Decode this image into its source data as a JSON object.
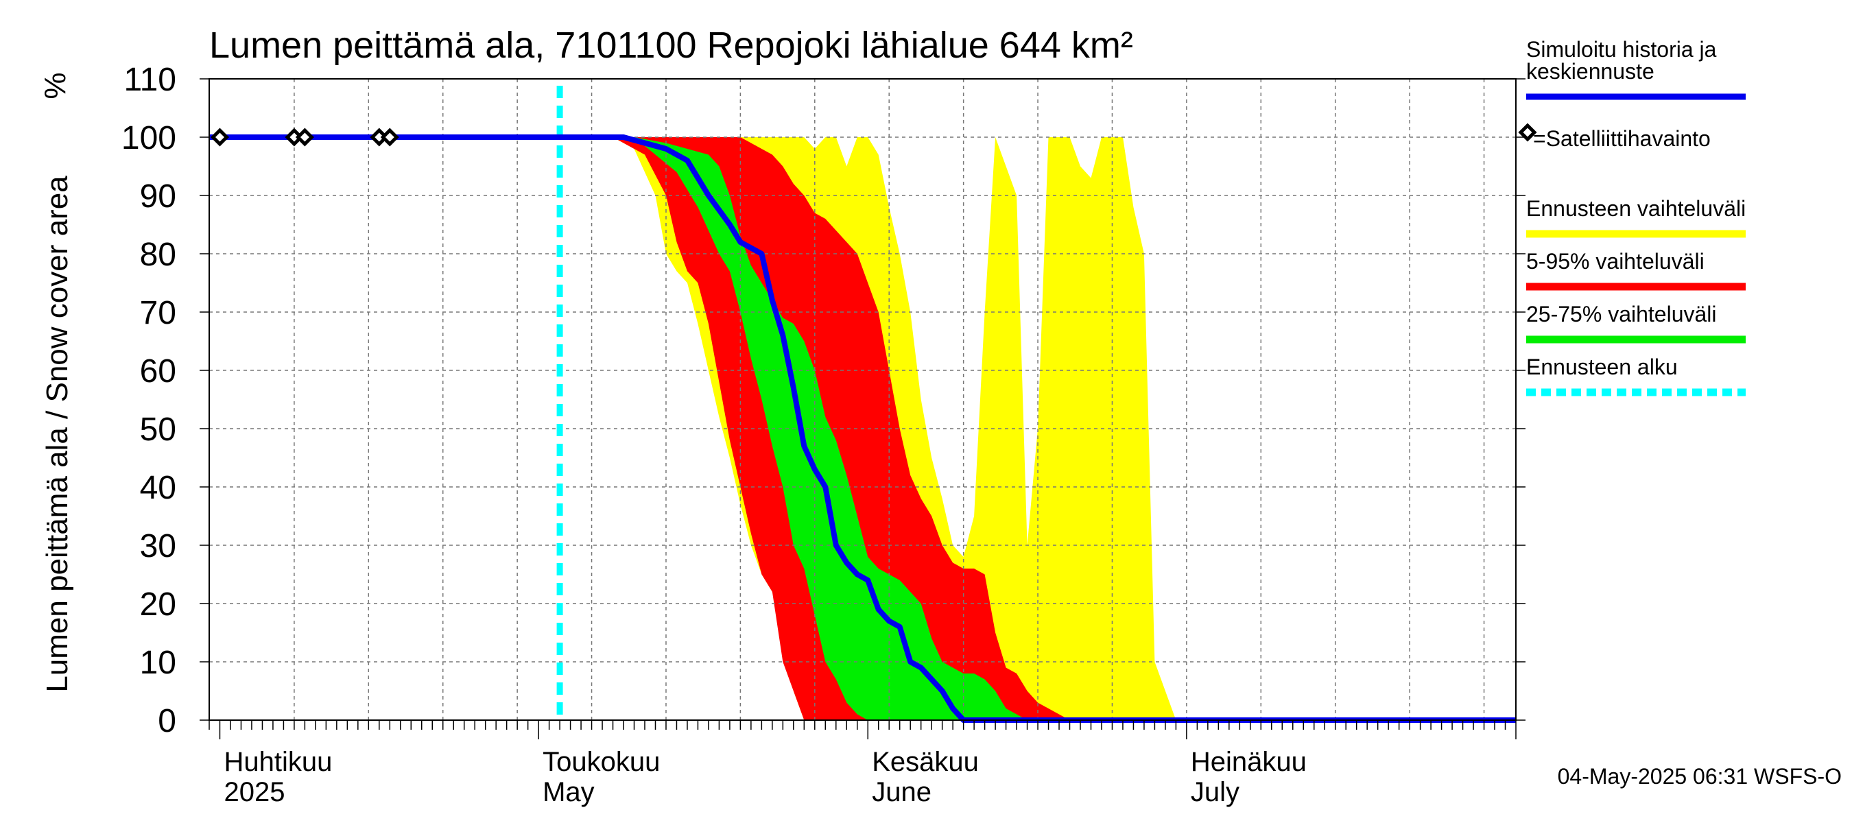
{
  "chart_data": {
    "type": "area",
    "title": "Lumen peittämä ala, 7101100 Repojoki lähialue 644 km²",
    "ylabel": "Lumen peittämä ala / Snow cover area",
    "yunit": "%",
    "xlim": [
      "2025-03-31",
      "2025-08-01"
    ],
    "ylim": [
      0,
      110
    ],
    "yticks": [
      0,
      10,
      20,
      30,
      40,
      50,
      60,
      70,
      80,
      90,
      100,
      110
    ],
    "grid": true,
    "legend_position": "right",
    "x_month_labels": [
      {
        "date": "2025-04-01",
        "fi": "Huhtikuu",
        "en": "2025"
      },
      {
        "date": "2025-05-01",
        "fi": "Toukokuu",
        "en": "May"
      },
      {
        "date": "2025-06-01",
        "fi": "Kesäkuu",
        "en": "June"
      },
      {
        "date": "2025-07-01",
        "fi": "Heinäkuu",
        "en": "July"
      }
    ],
    "forecast_start": "2025-05-03",
    "colors": {
      "blue": "#0000ee",
      "yellow": "#ffff00",
      "red": "#ff0000",
      "green": "#00ee00",
      "cyan": "#00ffff"
    },
    "legend": [
      {
        "label": "Simuloitu historia ja keskiennuste",
        "color": "#0000ee",
        "style": "line"
      },
      {
        "label": "=Satelliittihavainto",
        "color": "#000000",
        "style": "marker"
      },
      {
        "label": "Ennusteen vaihteluväli",
        "color": "#ffff00",
        "style": "band"
      },
      {
        "label": "5-95% vaihteluväli",
        "color": "#ff0000",
        "style": "band"
      },
      {
        "label": "25-75% vaihteluväli",
        "color": "#00ee00",
        "style": "band"
      },
      {
        "label": "Ennusteen alku",
        "color": "#00ffff",
        "style": "dashed"
      }
    ],
    "satellite_observations": [
      {
        "x": "2025-04-01",
        "y": 100
      },
      {
        "x": "2025-04-08",
        "y": 100
      },
      {
        "x": "2025-04-09",
        "y": 100
      },
      {
        "x": "2025-04-16",
        "y": 100
      },
      {
        "x": "2025-04-17",
        "y": 100
      }
    ],
    "series": [
      {
        "name": "Simuloitu historia ja keskiennuste",
        "points": [
          [
            "2025-03-31",
            100
          ],
          [
            "2025-05-09",
            100
          ],
          [
            "2025-05-11",
            99
          ],
          [
            "2025-05-13",
            98
          ],
          [
            "2025-05-15",
            96
          ],
          [
            "2025-05-17",
            90
          ],
          [
            "2025-05-19",
            85
          ],
          [
            "2025-05-20",
            82
          ],
          [
            "2025-05-22",
            80
          ],
          [
            "2025-05-23",
            72
          ],
          [
            "2025-05-24",
            66
          ],
          [
            "2025-05-25",
            57
          ],
          [
            "2025-05-26",
            47
          ],
          [
            "2025-05-27",
            43
          ],
          [
            "2025-05-28",
            40
          ],
          [
            "2025-05-29",
            30
          ],
          [
            "2025-05-30",
            27
          ],
          [
            "2025-05-31",
            25
          ],
          [
            "2025-06-01",
            24
          ],
          [
            "2025-06-02",
            19
          ],
          [
            "2025-06-03",
            17
          ],
          [
            "2025-06-04",
            16
          ],
          [
            "2025-06-05",
            10
          ],
          [
            "2025-06-06",
            9
          ],
          [
            "2025-06-07",
            7
          ],
          [
            "2025-06-08",
            5
          ],
          [
            "2025-06-09",
            2
          ],
          [
            "2025-06-10",
            0
          ],
          [
            "2025-08-01",
            0
          ]
        ]
      },
      {
        "name": "Ennusteen vaihteluväli",
        "upper": [
          [
            "2025-05-08",
            100
          ],
          [
            "2025-05-26",
            100
          ],
          [
            "2025-05-27",
            98
          ],
          [
            "2025-05-28",
            100
          ],
          [
            "2025-05-29",
            100
          ],
          [
            "2025-05-30",
            95
          ],
          [
            "2025-05-31",
            100
          ],
          [
            "2025-06-01",
            100
          ],
          [
            "2025-06-02",
            97
          ],
          [
            "2025-06-03",
            88
          ],
          [
            "2025-06-04",
            80
          ],
          [
            "2025-06-05",
            70
          ],
          [
            "2025-06-06",
            55
          ],
          [
            "2025-06-07",
            45
          ],
          [
            "2025-06-08",
            38
          ],
          [
            "2025-06-09",
            30
          ],
          [
            "2025-06-10",
            28
          ],
          [
            "2025-06-11",
            35
          ],
          [
            "2025-06-12",
            70
          ],
          [
            "2025-06-13",
            100
          ],
          [
            "2025-06-14",
            95
          ],
          [
            "2025-06-15",
            90
          ],
          [
            "2025-06-16",
            30
          ],
          [
            "2025-06-17",
            50
          ],
          [
            "2025-06-18",
            100
          ],
          [
            "2025-06-19",
            100
          ],
          [
            "2025-06-20",
            100
          ],
          [
            "2025-06-21",
            95
          ],
          [
            "2025-06-22",
            93
          ],
          [
            "2025-06-23",
            100
          ],
          [
            "2025-06-24",
            100
          ],
          [
            "2025-06-25",
            100
          ],
          [
            "2025-06-26",
            88
          ],
          [
            "2025-06-27",
            80
          ],
          [
            "2025-06-28",
            10
          ],
          [
            "2025-06-29",
            5
          ],
          [
            "2025-06-30",
            0
          ]
        ],
        "lower": [
          [
            "2025-05-08",
            100
          ],
          [
            "2025-05-10",
            98
          ],
          [
            "2025-05-12",
            90
          ],
          [
            "2025-05-13",
            80
          ],
          [
            "2025-05-14",
            77
          ],
          [
            "2025-05-15",
            75
          ],
          [
            "2025-05-16",
            68
          ],
          [
            "2025-05-17",
            60
          ],
          [
            "2025-05-18",
            52
          ],
          [
            "2025-05-19",
            45
          ],
          [
            "2025-05-20",
            37
          ],
          [
            "2025-05-21",
            30
          ],
          [
            "2025-05-22",
            25
          ],
          [
            "2025-05-23",
            22
          ],
          [
            "2025-05-24",
            15
          ],
          [
            "2025-05-25",
            5
          ],
          [
            "2025-05-26",
            0
          ],
          [
            "2025-06-30",
            0
          ]
        ]
      },
      {
        "name": "5-95% vaihteluväli",
        "upper": [
          [
            "2025-05-08",
            100
          ],
          [
            "2025-05-20",
            100
          ],
          [
            "2025-05-21",
            99
          ],
          [
            "2025-05-22",
            98
          ],
          [
            "2025-05-23",
            97
          ],
          [
            "2025-05-24",
            95
          ],
          [
            "2025-05-25",
            92
          ],
          [
            "2025-05-26",
            90
          ],
          [
            "2025-05-27",
            87
          ],
          [
            "2025-05-28",
            86
          ],
          [
            "2025-05-29",
            84
          ],
          [
            "2025-05-30",
            82
          ],
          [
            "2025-05-31",
            80
          ],
          [
            "2025-06-01",
            75
          ],
          [
            "2025-06-02",
            70
          ],
          [
            "2025-06-03",
            60
          ],
          [
            "2025-06-04",
            50
          ],
          [
            "2025-06-05",
            42
          ],
          [
            "2025-06-06",
            38
          ],
          [
            "2025-06-07",
            35
          ],
          [
            "2025-06-08",
            30
          ],
          [
            "2025-06-09",
            27
          ],
          [
            "2025-06-10",
            26
          ],
          [
            "2025-06-11",
            26
          ],
          [
            "2025-06-12",
            25
          ],
          [
            "2025-06-13",
            15
          ],
          [
            "2025-06-14",
            9
          ],
          [
            "2025-06-15",
            8
          ],
          [
            "2025-06-16",
            5
          ],
          [
            "2025-06-17",
            3
          ],
          [
            "2025-06-18",
            2
          ],
          [
            "2025-06-19",
            1
          ],
          [
            "2025-06-20",
            0
          ]
        ],
        "lower": [
          [
            "2025-05-08",
            100
          ],
          [
            "2025-05-11",
            97
          ],
          [
            "2025-05-13",
            90
          ],
          [
            "2025-05-14",
            82
          ],
          [
            "2025-05-15",
            77
          ],
          [
            "2025-05-16",
            75
          ],
          [
            "2025-05-17",
            68
          ],
          [
            "2025-05-18",
            58
          ],
          [
            "2025-05-19",
            48
          ],
          [
            "2025-05-20",
            40
          ],
          [
            "2025-05-21",
            32
          ],
          [
            "2025-05-22",
            25
          ],
          [
            "2025-05-23",
            22
          ],
          [
            "2025-05-24",
            10
          ],
          [
            "2025-05-25",
            5
          ],
          [
            "2025-05-26",
            0
          ],
          [
            "2025-06-20",
            0
          ]
        ]
      },
      {
        "name": "25-75% vaihteluväli",
        "upper": [
          [
            "2025-05-10",
            100
          ],
          [
            "2025-05-13",
            99
          ],
          [
            "2025-05-15",
            98
          ],
          [
            "2025-05-17",
            97
          ],
          [
            "2025-05-18",
            95
          ],
          [
            "2025-05-19",
            90
          ],
          [
            "2025-05-20",
            83
          ],
          [
            "2025-05-21",
            78
          ],
          [
            "2025-05-22",
            75
          ],
          [
            "2025-05-23",
            72
          ],
          [
            "2025-05-24",
            69
          ],
          [
            "2025-05-25",
            68
          ],
          [
            "2025-05-26",
            65
          ],
          [
            "2025-05-27",
            60
          ],
          [
            "2025-05-28",
            52
          ],
          [
            "2025-05-29",
            48
          ],
          [
            "2025-05-30",
            42
          ],
          [
            "2025-05-31",
            35
          ],
          [
            "2025-06-01",
            28
          ],
          [
            "2025-06-02",
            26
          ],
          [
            "2025-06-03",
            25
          ],
          [
            "2025-06-04",
            24
          ],
          [
            "2025-06-05",
            22
          ],
          [
            "2025-06-06",
            20
          ],
          [
            "2025-06-07",
            14
          ],
          [
            "2025-06-08",
            10
          ],
          [
            "2025-06-09",
            9
          ],
          [
            "2025-06-10",
            8
          ],
          [
            "2025-06-11",
            8
          ],
          [
            "2025-06-12",
            7
          ],
          [
            "2025-06-13",
            5
          ],
          [
            "2025-06-14",
            2
          ],
          [
            "2025-06-15",
            1
          ],
          [
            "2025-06-16",
            0
          ]
        ],
        "lower": [
          [
            "2025-05-10",
            100
          ],
          [
            "2025-05-14",
            94
          ],
          [
            "2025-05-16",
            88
          ],
          [
            "2025-05-18",
            80
          ],
          [
            "2025-05-19",
            77
          ],
          [
            "2025-05-20",
            70
          ],
          [
            "2025-05-21",
            62
          ],
          [
            "2025-05-22",
            55
          ],
          [
            "2025-05-23",
            47
          ],
          [
            "2025-05-24",
            40
          ],
          [
            "2025-05-25",
            30
          ],
          [
            "2025-05-26",
            26
          ],
          [
            "2025-05-27",
            18
          ],
          [
            "2025-05-28",
            10
          ],
          [
            "2025-05-29",
            7
          ],
          [
            "2025-05-30",
            3
          ],
          [
            "2025-05-31",
            1
          ],
          [
            "2025-06-01",
            0
          ],
          [
            "2025-06-16",
            0
          ]
        ]
      }
    ]
  },
  "timestamp": "04-May-2025 06:31 WSFS-O"
}
